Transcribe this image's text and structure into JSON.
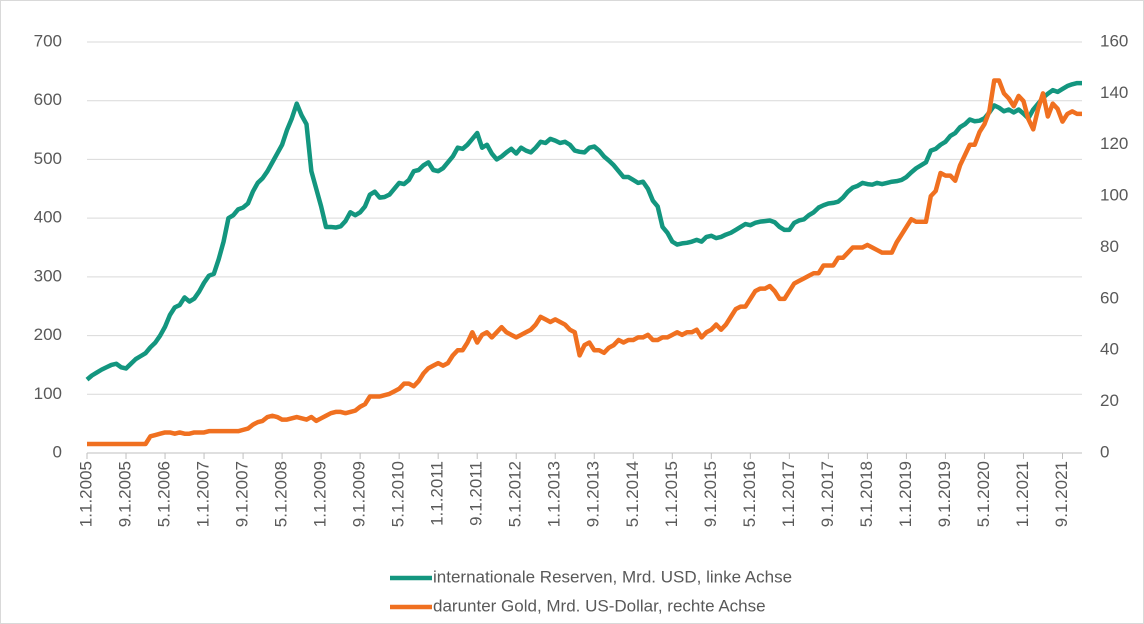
{
  "chart_data": {
    "type": "line",
    "categories": [
      "1.1.2005",
      null,
      null,
      null,
      null,
      null,
      null,
      null,
      "9.1.2005",
      null,
      null,
      null,
      null,
      null,
      null,
      null,
      "5.1.2006",
      null,
      null,
      null,
      null,
      null,
      null,
      null,
      "1.1.2007",
      null,
      null,
      null,
      null,
      null,
      null,
      null,
      "9.1.2007",
      null,
      null,
      null,
      null,
      null,
      null,
      null,
      "5.1.2008",
      null,
      null,
      null,
      null,
      null,
      null,
      null,
      "1.1.2009",
      null,
      null,
      null,
      null,
      null,
      null,
      null,
      "9.1.2009",
      null,
      null,
      null,
      null,
      null,
      null,
      null,
      "5.1.2010",
      null,
      null,
      null,
      null,
      null,
      null,
      null,
      "1.1.2011",
      null,
      null,
      null,
      null,
      null,
      null,
      null,
      "9.1.2011",
      null,
      null,
      null,
      null,
      null,
      null,
      null,
      "5.1.2012",
      null,
      null,
      null,
      null,
      null,
      null,
      null,
      "1.1.2013",
      null,
      null,
      null,
      null,
      null,
      null,
      null,
      "9.1.2013",
      null,
      null,
      null,
      null,
      null,
      null,
      null,
      "5.1.2014",
      null,
      null,
      null,
      null,
      null,
      null,
      null,
      "1.1.2015",
      null,
      null,
      null,
      null,
      null,
      null,
      null,
      "9.1.2015",
      null,
      null,
      null,
      null,
      null,
      null,
      null,
      "5.1.2016",
      null,
      null,
      null,
      null,
      null,
      null,
      null,
      "1.1.2017",
      null,
      null,
      null,
      null,
      null,
      null,
      null,
      "9.1.2017",
      null,
      null,
      null,
      null,
      null,
      null,
      null,
      "5.1.2018",
      null,
      null,
      null,
      null,
      null,
      null,
      null,
      "1.1.2019",
      null,
      null,
      null,
      null,
      null,
      null,
      null,
      "9.1.2019",
      null,
      null,
      null,
      null,
      null,
      null,
      null,
      "5.1.2020",
      null,
      null,
      null,
      null,
      null,
      null,
      null,
      "1.1.2021",
      null,
      null,
      null,
      null,
      null,
      null,
      null,
      "9.1.2021",
      null,
      null,
      null,
      null
    ],
    "series": [
      {
        "name": "internationale Reserven, Mrd. USD, linke Achse",
        "color": "#13967f",
        "values": [
          125,
          132,
          137,
          142,
          146,
          150,
          152,
          146,
          144,
          152,
          160,
          165,
          170,
          180,
          188,
          200,
          215,
          235,
          248,
          252,
          265,
          258,
          263,
          275,
          290,
          302,
          305,
          330,
          360,
          400,
          405,
          415,
          418,
          425,
          445,
          460,
          468,
          480,
          495,
          510,
          525,
          550,
          570,
          595,
          575,
          560,
          480,
          450,
          420,
          385,
          385,
          384,
          386,
          395,
          410,
          405,
          410,
          420,
          440,
          445,
          435,
          436,
          440,
          450,
          460,
          458,
          465,
          480,
          482,
          490,
          495,
          482,
          480,
          485,
          495,
          505,
          520,
          518,
          525,
          535,
          545,
          520,
          525,
          510,
          500,
          505,
          512,
          518,
          510,
          520,
          515,
          512,
          520,
          530,
          528,
          535,
          532,
          528,
          530,
          525,
          515,
          513,
          512,
          520,
          522,
          515,
          505,
          498,
          490,
          480,
          470,
          470,
          465,
          460,
          462,
          450,
          430,
          420,
          385,
          375,
          360,
          355,
          357,
          358,
          360,
          363,
          360,
          368,
          370,
          366,
          368,
          372,
          375,
          380,
          385,
          390,
          388,
          392,
          394,
          395,
          396,
          393,
          385,
          380,
          380,
          392,
          396,
          398,
          405,
          410,
          418,
          422,
          425,
          426,
          428,
          435,
          445,
          452,
          455,
          460,
          458,
          457,
          460,
          458,
          460,
          462,
          463,
          465,
          470,
          478,
          485,
          490,
          495,
          515,
          518,
          525,
          530,
          540,
          545,
          555,
          560,
          568,
          565,
          566,
          570,
          580,
          592,
          588,
          582,
          585,
          580,
          585,
          578,
          570,
          585,
          595,
          605,
          612,
          618,
          615,
          620,
          625,
          628,
          630,
          630
        ]
      },
      {
        "name": "darunter Gold, Mrd. US-Dollar, rechte Achse",
        "color": "#f07020",
        "axis": "y2",
        "values": [
          3.5,
          3.5,
          3.5,
          3.5,
          3.5,
          3.5,
          3.5,
          3.5,
          3.5,
          3.5,
          3.5,
          3.5,
          3.5,
          6.5,
          7,
          7.5,
          8,
          8,
          7.5,
          8,
          7.5,
          7.5,
          8,
          8,
          8,
          8.5,
          8.5,
          8.5,
          8.5,
          8.5,
          8.5,
          8.5,
          9,
          9.5,
          11,
          12,
          12.5,
          14,
          14.5,
          14,
          13,
          13,
          13.5,
          14,
          13.5,
          13,
          14,
          12.5,
          13.5,
          14.5,
          15.5,
          16,
          16,
          15.5,
          16,
          16.5,
          18,
          19,
          22,
          22,
          22,
          22.5,
          23,
          24,
          25,
          27,
          27,
          26,
          28,
          31,
          33,
          34,
          35,
          34,
          35,
          38,
          40,
          40,
          43,
          47,
          43,
          46,
          47,
          45,
          47,
          49,
          47,
          46,
          45,
          46,
          47,
          48,
          50,
          53,
          52,
          51,
          52,
          51,
          50,
          48,
          47,
          38,
          42,
          43,
          40,
          40,
          39,
          41,
          42,
          44,
          43,
          44,
          44,
          45,
          45,
          46,
          44,
          44,
          45,
          45,
          46,
          47,
          46,
          47,
          47,
          48,
          45,
          47,
          48,
          50,
          48,
          50,
          53,
          56,
          57,
          57,
          60,
          63,
          64,
          64,
          65,
          63,
          60,
          60,
          63,
          66,
          67,
          68,
          69,
          70,
          70,
          73,
          73,
          73,
          76,
          76,
          78,
          80,
          80,
          80,
          81,
          80,
          79,
          78,
          78,
          78,
          82,
          85,
          88,
          91,
          90,
          90,
          90,
          100,
          102,
          109,
          108,
          108,
          106,
          112,
          116,
          120,
          120,
          125,
          128,
          133,
          145,
          145,
          140,
          138,
          135,
          139,
          137,
          130,
          126,
          134,
          140,
          131,
          136,
          134,
          129,
          132,
          133,
          132,
          132
        ]
      }
    ],
    "ylim": [
      0,
      700
    ],
    "yticks": [
      0,
      100,
      200,
      300,
      400,
      500,
      600,
      700
    ],
    "y2lim": [
      0,
      160
    ],
    "y2ticks": [
      0,
      20,
      40,
      60,
      80,
      100,
      120,
      140,
      160
    ],
    "grid": true
  }
}
